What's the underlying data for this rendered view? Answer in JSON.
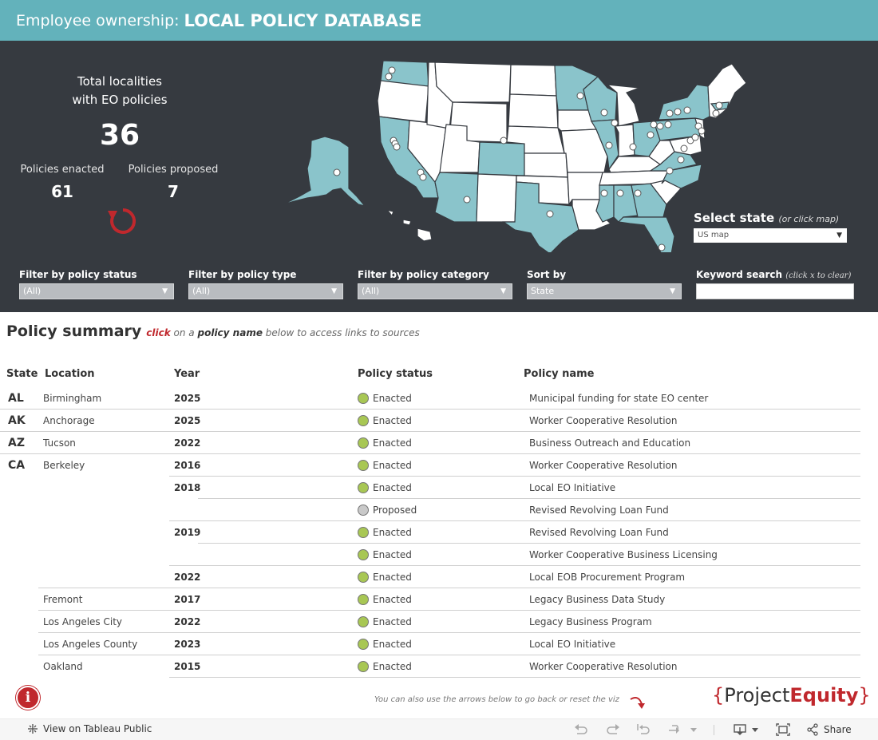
{
  "header": {
    "prefix": "Employee ownership:",
    "title": "LOCAL POLICY DATABASE"
  },
  "kpi": {
    "title_line1": "Total localities",
    "title_line2": "with EO policies",
    "total": "36",
    "enacted_label": "Policies enacted",
    "enacted_value": "61",
    "proposed_label": "Policies proposed",
    "proposed_value": "7"
  },
  "map": {
    "highlight_color": "#8ac4cb",
    "base_color": "#ffffff"
  },
  "select_state": {
    "label": "Select state",
    "hint": "(or click map)",
    "value": "US map"
  },
  "filters": {
    "status": {
      "label": "Filter by policy status",
      "value": "(All)"
    },
    "type": {
      "label": "Filter by policy type",
      "value": "(All)"
    },
    "category": {
      "label": "Filter by policy category",
      "value": "(All)"
    },
    "sort": {
      "label": "Sort by",
      "value": "State"
    },
    "keyword": {
      "label": "Keyword search",
      "hint": "(click x to clear)"
    }
  },
  "summary": {
    "heading": "Policy summary",
    "click": "click",
    "on_a": "on a",
    "policy_name": "policy name",
    "rest": "below to access links to sources"
  },
  "columns": {
    "state": "State",
    "location": "Location",
    "year": "Year",
    "status": "Policy status",
    "name": "Policy name"
  },
  "colors": {
    "enacted": "#a8c754",
    "proposed": "#c9c9c9",
    "accent": "#c0282d",
    "header": "#63b2bb",
    "dark": "#363a40"
  },
  "rows": [
    {
      "state": "AL",
      "location": "Birmingham",
      "year": "2025",
      "status": "Enacted",
      "name": "Municipal funding for state EO center"
    },
    {
      "state": "AK",
      "location": "Anchorage",
      "year": "2025",
      "status": "Enacted",
      "name": "Worker Cooperative Resolution"
    },
    {
      "state": "AZ",
      "location": "Tucson",
      "year": "2022",
      "status": "Enacted",
      "name": "Business Outreach and Education"
    },
    {
      "state": "CA",
      "location": "Berkeley",
      "year": "2016",
      "status": "Enacted",
      "name": "Worker Cooperative Resolution"
    },
    {
      "state": "",
      "location": "",
      "year": "2018",
      "status": "Enacted",
      "name": "Local EO Initiative"
    },
    {
      "state": "",
      "location": "",
      "year": "",
      "status": "Proposed",
      "name": "Revised Revolving Loan Fund"
    },
    {
      "state": "",
      "location": "",
      "year": "2019",
      "status": "Enacted",
      "name": "Revised Revolving Loan Fund"
    },
    {
      "state": "",
      "location": "",
      "year": "",
      "status": "Enacted",
      "name": "Worker Cooperative Business Licensing"
    },
    {
      "state": "",
      "location": "",
      "year": "2022",
      "status": "Enacted",
      "name": "Local EOB Procurement Program"
    },
    {
      "state": "",
      "location": "Fremont",
      "year": "2017",
      "status": "Enacted",
      "name": "Legacy Business Data Study"
    },
    {
      "state": "",
      "location": "Los Angeles City",
      "year": "2022",
      "status": "Enacted",
      "name": "Legacy Business Program"
    },
    {
      "state": "",
      "location": "Los Angeles County",
      "year": "2023",
      "status": "Enacted",
      "name": "Local EO Initiative"
    },
    {
      "state": "",
      "location": "Oakland",
      "year": "2015",
      "status": "Enacted",
      "name": "Worker Cooperative Resolution"
    }
  ],
  "footer": {
    "hint": "You can also use the arrows below to go back or reset the viz",
    "logo_brace_open": "{",
    "logo_project": "Project",
    "logo_equity": "Equity",
    "logo_brace_close": "}",
    "view_label": "View on Tableau Public",
    "share_label": "Share",
    "info_icon": "i"
  }
}
